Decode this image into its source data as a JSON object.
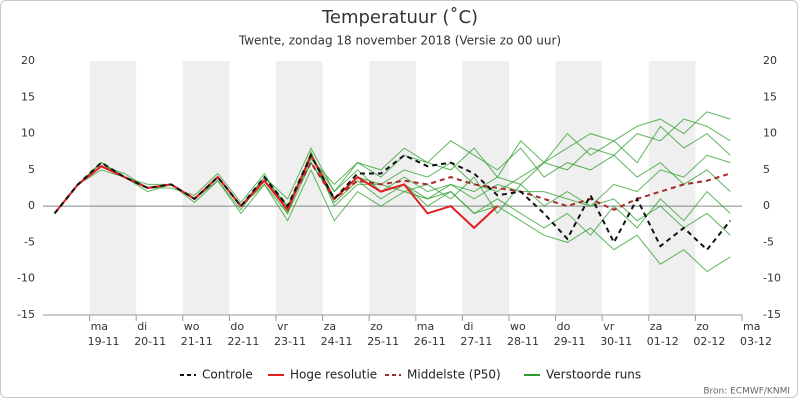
{
  "chart_data": {
    "type": "line",
    "title": "Temperatuur (˚C)",
    "subtitle": "Twente, zondag 18 november 2018 (Versie zo 00 uur)",
    "source": "Bron: ECMWF/KNMI",
    "x": [
      0.25,
      0.75,
      1.25,
      1.75,
      2.25,
      2.75,
      3.25,
      3.75,
      4.25,
      4.75,
      5.25,
      5.75,
      6.25,
      6.75,
      7.25,
      7.75,
      8.25,
      8.75,
      9.25,
      9.75,
      10.25,
      10.75,
      11.25,
      11.75,
      12.25,
      12.75,
      13.25,
      13.75,
      14.25,
      14.75
    ],
    "xlim": [
      0,
      15
    ],
    "xticks": [
      {
        "value": 1,
        "label": "ma"
      },
      {
        "value": 2,
        "label": "di"
      },
      {
        "value": 3,
        "label": "wo"
      },
      {
        "value": 4,
        "label": "do"
      },
      {
        "value": 5,
        "label": "vr"
      },
      {
        "value": 6,
        "label": "za"
      },
      {
        "value": 7,
        "label": "zo"
      },
      {
        "value": 8,
        "label": "ma"
      },
      {
        "value": 9,
        "label": "di"
      },
      {
        "value": 10,
        "label": "wo"
      },
      {
        "value": 11,
        "label": "do"
      },
      {
        "value": 12,
        "label": "vr"
      },
      {
        "value": 13,
        "label": "za"
      },
      {
        "value": 14,
        "label": "zo"
      },
      {
        "value": 15,
        "label": "ma"
      }
    ],
    "xtick_dates": [
      "19-11",
      "20-11",
      "21-11",
      "22-11",
      "23-11",
      "24-11",
      "25-11",
      "26-11",
      "27-11",
      "28-11",
      "29-11",
      "30-11",
      "01-12",
      "02-12",
      "03-12"
    ],
    "ylim": [
      -15,
      20
    ],
    "yticks": [
      -15,
      -10,
      -5,
      0,
      5,
      10,
      15,
      20
    ],
    "series": [
      {
        "name": "Controle",
        "color": "#111111",
        "dashed": true,
        "values": [
          -1,
          3,
          6,
          4,
          2.5,
          3,
          1,
          4,
          0,
          4,
          0,
          7,
          1,
          4.5,
          4.5,
          7,
          5.5,
          6,
          4.5,
          1.5,
          2,
          -1,
          -4.5,
          1.5,
          -5,
          1,
          -5.5,
          -3,
          -6,
          -2
        ]
      },
      {
        "name": "Hoge resolutie",
        "color": "#e02020",
        "dashed": false,
        "values": [
          -1,
          3,
          5.5,
          4,
          2.5,
          3,
          1,
          4,
          0,
          3.5,
          -0.5,
          7,
          1,
          4,
          2,
          3,
          -1,
          0,
          -3,
          0,
          null,
          null,
          null,
          null,
          null,
          null,
          null,
          null,
          null,
          null
        ]
      },
      {
        "name": "Middelste (P50)",
        "color": "#a52a2a",
        "dashed": true,
        "values": [
          -1,
          3,
          5.5,
          4,
          2.5,
          3,
          1,
          4,
          0,
          3.5,
          0,
          6,
          1,
          3.5,
          3,
          3.5,
          3,
          4,
          3,
          2.5,
          2,
          1,
          0,
          1,
          -0.5,
          1,
          2,
          3,
          3.5,
          4.5
        ]
      },
      {
        "name": "Verstoorde runs",
        "color": "#2a9d2a",
        "dashed": false,
        "members": [
          [
            -1,
            3,
            6,
            4,
            2.5,
            3,
            1,
            4,
            0,
            3,
            -1,
            6,
            1,
            4,
            3,
            5,
            4,
            6,
            3,
            2,
            4,
            6,
            8,
            10,
            9,
            11,
            12,
            10,
            13,
            12
          ],
          [
            -1,
            3,
            5.5,
            4,
            2,
            3,
            0.5,
            3.5,
            -0.5,
            4,
            0,
            7,
            2,
            5,
            2,
            3,
            1,
            2,
            -1,
            0,
            -2,
            -4,
            -5,
            -3,
            -6,
            -4,
            -8,
            -6,
            -9,
            -7
          ],
          [
            -1,
            3,
            6,
            4,
            2.5,
            2.5,
            1.5,
            4.5,
            0.5,
            4.5,
            -1,
            7.5,
            0,
            3,
            3,
            2,
            3,
            1,
            4,
            -1,
            3,
            0,
            2,
            0,
            1,
            -2,
            0,
            -3,
            -1,
            -4
          ],
          [
            -1,
            3,
            5,
            4,
            3,
            3,
            1,
            4,
            0,
            3.5,
            0,
            6.5,
            3,
            6,
            5,
            8,
            6,
            9,
            7,
            5,
            8,
            4,
            6,
            5,
            7,
            4,
            6,
            3,
            5,
            2
          ],
          [
            -1,
            3,
            5.5,
            4.5,
            2.5,
            3,
            1,
            3.5,
            -1,
            3,
            -2,
            5,
            -2,
            2,
            0,
            2,
            1,
            3,
            2,
            4,
            3,
            6,
            5,
            8,
            7,
            10,
            9,
            12,
            11,
            9
          ],
          [
            -1,
            3,
            6,
            4,
            2.5,
            3,
            1,
            4,
            0,
            4,
            1,
            8,
            2,
            6,
            4,
            7,
            6,
            5,
            8,
            4,
            9,
            6,
            10,
            7,
            9,
            6,
            11,
            8,
            10,
            7
          ],
          [
            -1,
            3,
            5.5,
            4,
            2.5,
            3,
            1,
            4,
            0,
            3.5,
            -0.5,
            7,
            0.5,
            3.5,
            1,
            3,
            0,
            2,
            -1,
            1,
            -1,
            -3,
            -1,
            -4,
            0,
            -3,
            1,
            -2,
            2,
            -1
          ],
          [
            -1,
            3,
            6,
            4,
            2.5,
            3,
            1,
            4,
            0,
            3.5,
            0,
            6,
            1,
            4,
            2,
            4,
            2,
            3,
            1,
            3,
            2,
            2,
            1,
            0,
            3,
            2,
            5,
            4,
            7,
            6
          ]
        ]
      }
    ]
  }
}
